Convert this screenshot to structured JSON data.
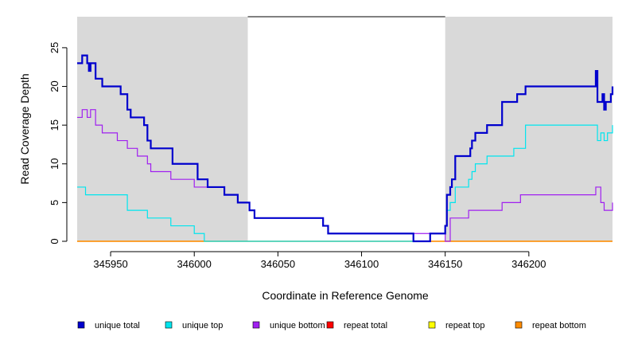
{
  "chart_data": {
    "type": "line",
    "xlabel": "Coordinate in Reference Genome",
    "ylabel": "Read Coverage Depth",
    "xlim": [
      345930,
      346250
    ],
    "ylim": [
      0,
      29
    ],
    "x_ticks": [
      345950,
      346000,
      346050,
      346100,
      346150,
      346200
    ],
    "y_ticks": [
      0,
      5,
      10,
      15,
      20,
      25
    ],
    "shaded_regions": [
      [
        345930,
        346032
      ],
      [
        346150,
        346250
      ]
    ],
    "top_bar": [
      346032,
      346150
    ],
    "legend_position": "bottom",
    "series": [
      {
        "name": "unique total",
        "color": "#0000cd",
        "step_x": [
          345930,
          345933,
          345936,
          345937,
          345938,
          345941,
          345945,
          345956,
          345960,
          345962,
          345966,
          345970,
          345972,
          345974,
          345977,
          345987,
          346002,
          346008,
          346018,
          346026,
          346033,
          346036,
          346070,
          346077,
          346080,
          346131,
          346141,
          346150,
          346151,
          346153,
          346154,
          346156,
          346164,
          346165,
          346166,
          346168,
          346175,
          346184,
          346193,
          346198,
          346240,
          346241,
          346244,
          346245,
          346246,
          346249
        ],
        "values": [
          23,
          24,
          23,
          22,
          23,
          21,
          20,
          19,
          17,
          16,
          16,
          15,
          13,
          12,
          12,
          10,
          8,
          7,
          6,
          5,
          4,
          3,
          3,
          2,
          1,
          0,
          1,
          2,
          6,
          7,
          8,
          11,
          11,
          12,
          13,
          14,
          15,
          18,
          19,
          20,
          22,
          18,
          19,
          17,
          18,
          19
        ],
        "last_value": 20,
        "end_x": 346250
      },
      {
        "name": "unique top",
        "color": "#00e5ee",
        "step_x": [
          345930,
          345935,
          345960,
          345972,
          345986,
          346000,
          346006,
          346131,
          346141,
          346150,
          346151,
          346153,
          346156,
          346164,
          346166,
          346168,
          346175,
          346184,
          346191,
          346198,
          346240,
          346241,
          346243,
          346245,
          346247,
          346249
        ],
        "values": [
          7,
          6,
          4,
          3,
          2,
          1,
          0,
          0,
          1,
          2,
          4,
          5,
          7,
          8,
          9,
          10,
          11,
          11,
          12,
          15,
          15,
          13,
          14,
          13,
          14,
          14
        ],
        "last_value": 15,
        "end_x": 346250
      },
      {
        "name": "unique bottom",
        "color": "#a020f0",
        "step_x": [
          345930,
          345933,
          345936,
          345937,
          345938,
          345941,
          345945,
          345954,
          345960,
          345966,
          345970,
          345972,
          345974,
          345978,
          345986,
          346000,
          346004,
          346018,
          346026,
          346033,
          346036,
          346070,
          346077,
          346080,
          346150,
          346153,
          346164,
          346175,
          346184,
          346195,
          346240,
          346243,
          346245,
          346248
        ],
        "values": [
          16,
          17,
          16,
          16,
          17,
          15,
          14,
          13,
          12,
          11,
          11,
          10,
          9,
          9,
          8,
          7,
          7,
          6,
          5,
          4,
          3,
          3,
          2,
          1,
          0,
          3,
          4,
          4,
          5,
          6,
          7,
          5,
          4,
          4
        ],
        "last_value": 5,
        "end_x": 346250
      },
      {
        "name": "repeat total",
        "color": "#ff0000",
        "step_x": [
          345930
        ],
        "values": [
          0
        ],
        "last_value": 0,
        "end_x": 346250
      },
      {
        "name": "repeat top",
        "color": "#ffff00",
        "step_x": [
          345930
        ],
        "values": [
          0
        ],
        "last_value": 0,
        "end_x": 346250
      },
      {
        "name": "repeat bottom",
        "color": "#ff8c00",
        "step_x": [
          345930
        ],
        "values": [
          0
        ],
        "last_value": 0,
        "end_x": 346250
      }
    ]
  }
}
